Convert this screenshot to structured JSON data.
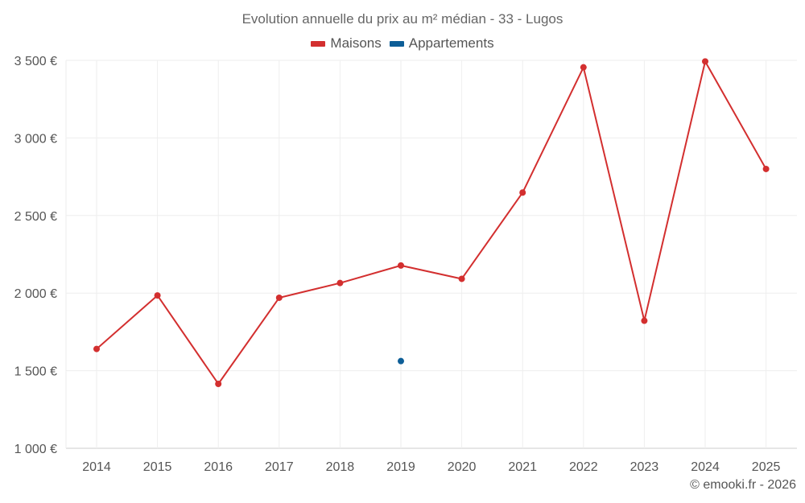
{
  "chart_data": {
    "type": "line",
    "title": "Evolution annuelle du prix au m² médian - 33 - Lugos",
    "categories": [
      "2014",
      "2015",
      "2016",
      "2017",
      "2018",
      "2019",
      "2020",
      "2021",
      "2022",
      "2023",
      "2024",
      "2025"
    ],
    "series": [
      {
        "name": "Maisons",
        "color": "#d32f2f",
        "values": [
          1640,
          1985,
          1415,
          1970,
          2065,
          2178,
          2092,
          2648,
          3455,
          1822,
          3493,
          2800
        ]
      },
      {
        "name": "Appartements",
        "color": "#0d5e97",
        "values": [
          null,
          null,
          null,
          null,
          null,
          1562,
          null,
          null,
          null,
          null,
          null,
          null
        ]
      }
    ],
    "y_ticks": [
      1000,
      1500,
      2000,
      2500,
      3000,
      3500
    ],
    "y_tick_labels": [
      "1 000 €",
      "1 500 €",
      "2 000 €",
      "2 500 €",
      "3 000 €",
      "3 500 €"
    ],
    "ylim": [
      1000,
      3500
    ],
    "xlabel": "",
    "ylabel": "",
    "grid": true,
    "legend_position": "top-center"
  },
  "credit": "© emooki.fr - 2026"
}
